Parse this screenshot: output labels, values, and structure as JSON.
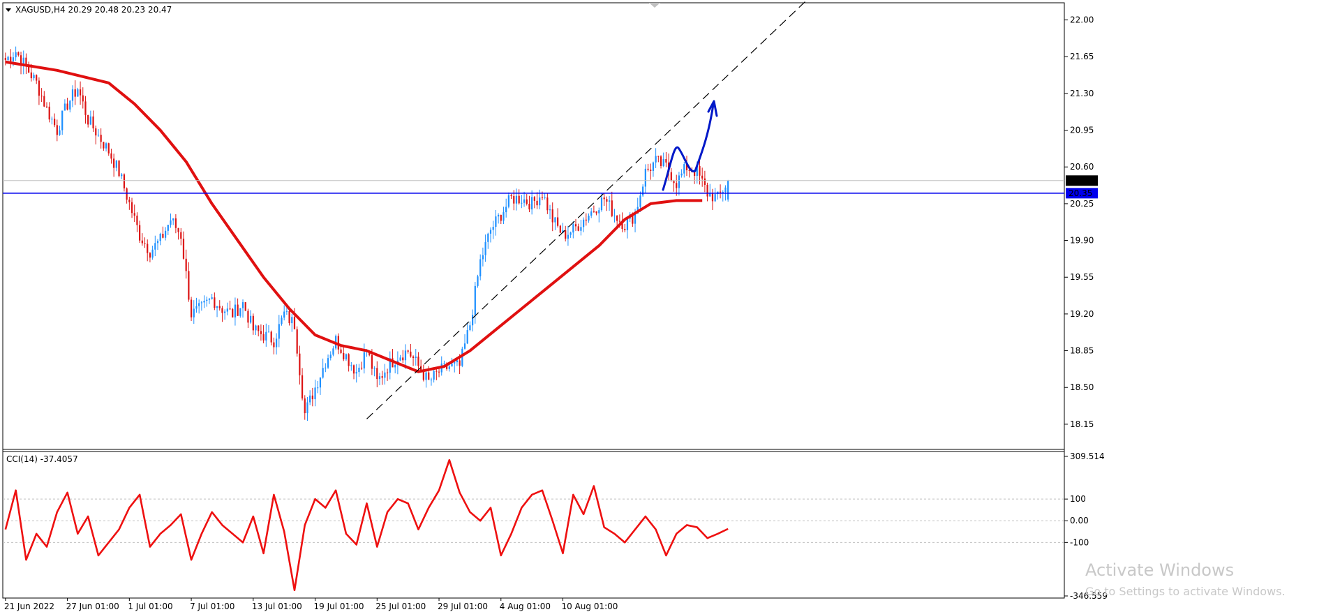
{
  "colors": {
    "background": "#ffffff",
    "candle_up": "#1e90ff",
    "candle_down": "#dc1414",
    "ma_line": "#e01010",
    "support_line": "#0000ee",
    "cci_line": "#ee1010",
    "arrow": "#0018c8",
    "watermark": "#c8c8c8"
  },
  "header": {
    "title": "XAGUSD,H4  20.29 20.48 20.23 20.47"
  },
  "price_pane": {
    "symbol": "XAGUSD",
    "timeframe": "H4",
    "ohlc": {
      "open": 20.29,
      "high": 20.48,
      "low": 20.23,
      "close": 20.47
    },
    "ylim": [
      17.93,
      22.15
    ],
    "y_ticks": [
      "22.00",
      "21.65",
      "21.30",
      "20.95",
      "20.60",
      "20.25",
      "19.90",
      "19.55",
      "19.20",
      "18.85",
      "18.50",
      "18.15"
    ],
    "current_price": {
      "value": 20.47,
      "label": "20.47"
    },
    "support_level": {
      "value": 20.35,
      "label": "20.35"
    }
  },
  "cci_pane": {
    "title": "CCI(14) -37.4057",
    "ylim": [
      -346.559,
      309.514
    ],
    "y_ticks": [
      "309.514",
      "100",
      "0.00",
      "-100",
      "-346.559"
    ],
    "levels": [
      100,
      -100
    ]
  },
  "x_ticks": [
    "21 Jun 2022",
    "27 Jun 01:00",
    "1 Jul 01:00",
    "7 Jul 01:00",
    "13 Jul 01:00",
    "19 Jul 01:00",
    "25 Jul 01:00",
    "29 Jul 01:00",
    "4 Aug 01:00",
    "10 Aug 01:00"
  ],
  "watermark": {
    "line1": "Activate Windows",
    "line2": "Go to Settings to activate Windows."
  },
  "chart_data": [
    {
      "type": "line",
      "subtype": "candlestick",
      "name": "XAGUSD,H4",
      "x_labels": [
        "21 Jun 2022",
        "27 Jun 01:00",
        "1 Jul 01:00",
        "7 Jul 01:00",
        "13 Jul 01:00",
        "19 Jul 01:00",
        "25 Jul 01:00",
        "29 Jul 01:00",
        "4 Aug 01:00",
        "10 Aug 01:00"
      ],
      "close_path": [
        [
          0,
          21.62
        ],
        [
          4,
          21.7
        ],
        [
          8,
          21.55
        ],
        [
          12,
          21.4
        ],
        [
          16,
          21.15
        ],
        [
          20,
          20.95
        ],
        [
          24,
          21.2
        ],
        [
          28,
          21.35
        ],
        [
          32,
          21.05
        ],
        [
          36,
          20.9
        ],
        [
          40,
          20.75
        ],
        [
          44,
          20.55
        ],
        [
          48,
          20.25
        ],
        [
          52,
          19.95
        ],
        [
          56,
          19.8
        ],
        [
          60,
          19.9
        ],
        [
          64,
          20.1
        ],
        [
          68,
          19.95
        ],
        [
          72,
          19.2
        ],
        [
          76,
          19.25
        ],
        [
          80,
          19.35
        ],
        [
          84,
          19.25
        ],
        [
          88,
          19.2
        ],
        [
          92,
          19.3
        ],
        [
          96,
          19.05
        ],
        [
          100,
          19.0
        ],
        [
          104,
          18.95
        ],
        [
          108,
          19.2
        ],
        [
          112,
          19.1
        ],
        [
          116,
          18.25
        ],
        [
          120,
          18.5
        ],
        [
          124,
          18.75
        ],
        [
          128,
          18.95
        ],
        [
          132,
          18.8
        ],
        [
          136,
          18.65
        ],
        [
          140,
          18.85
        ],
        [
          144,
          18.55
        ],
        [
          148,
          18.7
        ],
        [
          152,
          18.8
        ],
        [
          156,
          18.85
        ],
        [
          160,
          18.7
        ],
        [
          164,
          18.55
        ],
        [
          168,
          18.65
        ],
        [
          172,
          18.7
        ],
        [
          176,
          18.7
        ],
        [
          180,
          19.1
        ],
        [
          184,
          19.7
        ],
        [
          188,
          20.0
        ],
        [
          192,
          20.15
        ],
        [
          196,
          20.3
        ],
        [
          200,
          20.3
        ],
        [
          204,
          20.25
        ],
        [
          208,
          20.35
        ],
        [
          212,
          20.1
        ],
        [
          216,
          19.95
        ],
        [
          220,
          20.0
        ],
        [
          224,
          20.1
        ],
        [
          228,
          20.2
        ],
        [
          232,
          20.3
        ],
        [
          236,
          20.15
        ],
        [
          240,
          20.05
        ],
        [
          244,
          20.15
        ],
        [
          248,
          20.55
        ],
        [
          252,
          20.65
        ],
        [
          256,
          20.6
        ],
        [
          260,
          20.45
        ],
        [
          264,
          20.6
        ],
        [
          268,
          20.55
        ],
        [
          272,
          20.35
        ],
        [
          276,
          20.3
        ],
        [
          280,
          20.47
        ]
      ],
      "ma_line": [
        [
          0,
          21.6
        ],
        [
          20,
          21.52
        ],
        [
          40,
          21.4
        ],
        [
          50,
          21.2
        ],
        [
          60,
          20.95
        ],
        [
          70,
          20.65
        ],
        [
          80,
          20.25
        ],
        [
          90,
          19.9
        ],
        [
          100,
          19.55
        ],
        [
          110,
          19.25
        ],
        [
          120,
          19.0
        ],
        [
          130,
          18.9
        ],
        [
          140,
          18.85
        ],
        [
          150,
          18.75
        ],
        [
          160,
          18.65
        ],
        [
          170,
          18.7
        ],
        [
          180,
          18.85
        ],
        [
          190,
          19.05
        ],
        [
          200,
          19.25
        ],
        [
          210,
          19.45
        ],
        [
          220,
          19.65
        ],
        [
          230,
          19.85
        ],
        [
          240,
          20.1
        ],
        [
          250,
          20.25
        ],
        [
          260,
          20.28
        ],
        [
          270,
          20.28
        ]
      ],
      "trendline": [
        [
          140,
          18.2
        ],
        [
          311,
          22.2
        ]
      ],
      "support_level": 20.35,
      "ylim": [
        17.93,
        22.15
      ]
    },
    {
      "type": "line",
      "name": "CCI(14) -37.4057",
      "x": [
        0,
        4,
        8,
        12,
        16,
        20,
        24,
        28,
        32,
        36,
        40,
        44,
        48,
        52,
        56,
        60,
        64,
        68,
        72,
        76,
        80,
        84,
        88,
        92,
        96,
        100,
        104,
        108,
        112,
        116,
        120,
        124,
        128,
        132,
        136,
        140,
        144,
        148,
        152,
        156,
        160,
        164,
        168,
        172,
        176,
        180,
        184,
        188,
        192,
        196,
        200,
        204,
        208,
        212,
        216,
        220,
        224,
        228,
        232,
        236,
        240,
        244,
        248,
        252,
        256,
        260,
        264,
        268,
        272,
        276,
        280
      ],
      "values": [
        -40,
        140,
        -180,
        -60,
        -120,
        40,
        130,
        -60,
        20,
        -160,
        -100,
        -40,
        60,
        120,
        -120,
        -60,
        -20,
        30,
        -180,
        -60,
        40,
        -20,
        -60,
        -100,
        20,
        -150,
        120,
        -50,
        -320,
        -20,
        100,
        60,
        140,
        -60,
        -110,
        80,
        -120,
        40,
        100,
        80,
        -40,
        60,
        140,
        280,
        130,
        40,
        0,
        60,
        -160,
        -60,
        60,
        120,
        140,
        0,
        -150,
        120,
        30,
        160,
        -30,
        -60,
        -100,
        -40,
        20,
        -40,
        -160,
        -60,
        -20,
        -30,
        -80,
        -60,
        -37.4
      ],
      "levels": [
        100,
        -100
      ],
      "ylim": [
        -346.559,
        309.514
      ]
    }
  ]
}
